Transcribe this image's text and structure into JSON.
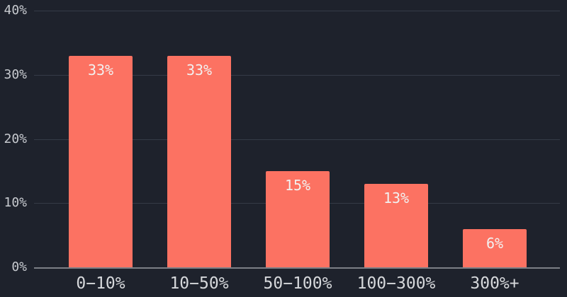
{
  "chart_data": {
    "type": "bar",
    "categories": [
      "0−10%",
      "10−50%",
      "50−100%",
      "100−300%",
      "300%+"
    ],
    "values": [
      33,
      33,
      15,
      13,
      6
    ],
    "bar_labels": [
      "33%",
      "33%",
      "15%",
      "13%",
      "6%"
    ],
    "yticks": [
      "0%",
      "10%",
      "20%",
      "30%",
      "40%"
    ],
    "ytick_values": [
      0,
      10,
      20,
      30,
      40
    ],
    "ylim": [
      0,
      40
    ],
    "grid": true,
    "legend_position": "none",
    "colors": {
      "background": "#1e222c",
      "bar": "#fc7262",
      "gridline": "#353b47",
      "baseline": "#7c7f86",
      "ytick_label": "#c7cacf",
      "xtick_label": "#d6d8db",
      "bar_label": "#f2f1f0"
    }
  }
}
